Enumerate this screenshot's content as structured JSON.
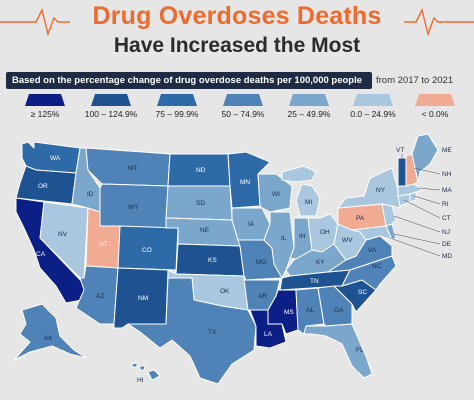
{
  "header": {
    "title_line1": "Drug Overdoses Deaths",
    "title_line2": "Have Increased the Most",
    "basis": "Based on the percentage change of drug overdose deaths per 100,000 people",
    "years": "from 2017 to 2021"
  },
  "colors": {
    "c1": "#0b1f86",
    "c2": "#1f5290",
    "c3": "#2f6aa8",
    "c4": "#4f83b8",
    "c5": "#7ca7cd",
    "c6": "#a9c8e0",
    "c7": "#f2ab93",
    "background": "#e6e6e6",
    "title_accent": "#ef6a2c"
  },
  "legend": [
    {
      "label": "≥ 125%",
      "color_key": "c1"
    },
    {
      "label": "100 – 124.9%",
      "color_key": "c2"
    },
    {
      "label": "75 – 99.9%",
      "color_key": "c3"
    },
    {
      "label": "50 – 74.9%",
      "color_key": "c4"
    },
    {
      "label": "25 – 49.9%",
      "color_key": "c5"
    },
    {
      "label": "0.0 – 24.9%",
      "color_key": "c6"
    },
    {
      "label": "< 0.0%",
      "color_key": "c7"
    }
  ],
  "states": {
    "WA": "c3",
    "OR": "c2",
    "CA": "c1",
    "NV": "c6",
    "ID": "c5",
    "MT": "c4",
    "WY": "c4",
    "UT": "c7",
    "AZ": "c4",
    "CO": "c3",
    "NM": "c2",
    "ND": "c3",
    "SD": "c5",
    "NE": "c5",
    "KS": "c2",
    "OK": "c6",
    "TX": "c4",
    "MN": "c3",
    "IA": "c5",
    "MO": "c4",
    "AR": "c4",
    "LA": "c1",
    "WI": "c5",
    "IL": "c5",
    "MI": "c6",
    "IN": "c5",
    "OH": "c6",
    "KY": "c5",
    "TN": "c2",
    "MS": "c1",
    "AL": "c4",
    "GA": "c4",
    "FL": "c5",
    "SC": "c2",
    "NC": "c4",
    "VA": "c4",
    "WV": "c6",
    "PA": "c7",
    "NY": "c6",
    "ME": "c5",
    "VT": "c2",
    "NH": "c7",
    "MA": "c6",
    "RI": "c6",
    "CT": "c6",
    "NJ": "c6",
    "DE": "c5",
    "MD": "c6",
    "AK": "c4",
    "HI": "c4"
  },
  "state_labels": {
    "WA": "WA",
    "OR": "OR",
    "CA": "CA",
    "NV": "NV",
    "ID": "ID",
    "MT": "MT",
    "WY": "WY",
    "UT": "UT",
    "AZ": "AZ",
    "CO": "CO",
    "NM": "NM",
    "ND": "ND",
    "SD": "SD",
    "NE": "NE",
    "KS": "KS",
    "OK": "OK",
    "TX": "TX",
    "MN": "MN",
    "IA": "IA",
    "MO": "MO",
    "AR": "AR",
    "LA": "LA",
    "WI": "WI",
    "IL": "IL",
    "MI": "MI",
    "IN": "IN",
    "OH": "OH",
    "KY": "KY",
    "TN": "TN",
    "MS": "MS",
    "AL": "AL",
    "GA": "GA",
    "FL": "FL",
    "SC": "SC",
    "NC": "NC",
    "VA": "VA",
    "WV": "WV",
    "PA": "PA",
    "NY": "NY",
    "ME": "ME",
    "VT": "VT",
    "NH": "NH",
    "MA": "MA",
    "RI": "RI",
    "CT": "CT",
    "NJ": "NJ",
    "DE": "DE",
    "MD": "MD",
    "AK": "AK",
    "HI": "HI"
  }
}
